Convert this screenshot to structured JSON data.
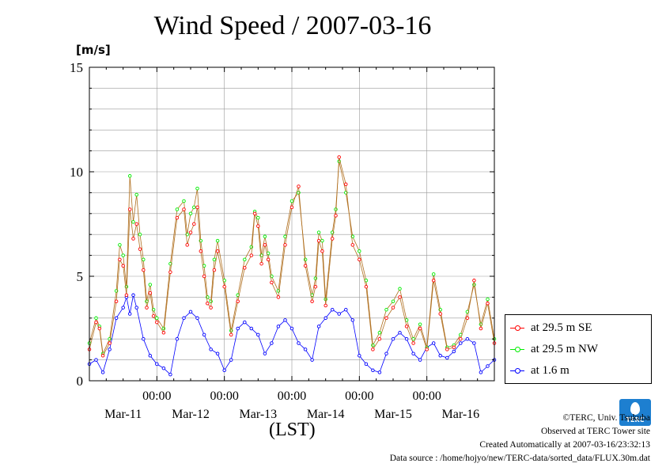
{
  "header": {
    "title": "Wind Speed / 2007-03-16",
    "unit": "[m/s]",
    "xlabel": "(LST)"
  },
  "footer": {
    "copyright": "©TERC, Univ. Tsukuba",
    "site": "Observed at TERC Tower site",
    "created": "Created Automatically at 2007-03-16/23:32:13",
    "source": "Data source : /home/hojyo/new/TERC-data/sorted_data/FLUX.30m.dat",
    "logo_text": "TERC"
  },
  "colors": {
    "se": "#ff0000",
    "nw": "#00ee00",
    "m16": "#0000ff",
    "connector": "#b07020",
    "grid": "#999999"
  },
  "chart_data": {
    "type": "line",
    "title": "Wind Speed / 2007-03-16",
    "ylabel": "[m/s]",
    "xlabel": "(LST)",
    "ylim": [
      0,
      15
    ],
    "xlim": [
      0,
      6
    ],
    "yticks": [
      0,
      5,
      10,
      15
    ],
    "x_time_labels": [
      "00:00",
      "00:00",
      "00:00",
      "00:00",
      "00:00"
    ],
    "x_date_labels": [
      "Mar-11",
      "Mar-12",
      "Mar-13",
      "Mar-14",
      "Mar-15",
      "Mar-16"
    ],
    "x_unit": "days (2007-03-11 to 2007-03-16)",
    "grid": true,
    "legend_position": "right",
    "series": [
      {
        "name": "at 29.5 m SE",
        "color": "#ff0000",
        "x": [
          0,
          0.1,
          0.15,
          0.2,
          0.3,
          0.4,
          0.45,
          0.5,
          0.55,
          0.6,
          0.65,
          0.7,
          0.75,
          0.8,
          0.85,
          0.9,
          0.95,
          1.0,
          1.1,
          1.2,
          1.3,
          1.4,
          1.45,
          1.5,
          1.55,
          1.6,
          1.65,
          1.7,
          1.75,
          1.8,
          1.85,
          1.9,
          2.0,
          2.1,
          2.2,
          2.3,
          2.4,
          2.45,
          2.5,
          2.55,
          2.6,
          2.65,
          2.7,
          2.8,
          2.9,
          3.0,
          3.1,
          3.2,
          3.3,
          3.35,
          3.4,
          3.45,
          3.5,
          3.6,
          3.65,
          3.7,
          3.8,
          3.9,
          4.0,
          4.1,
          4.2,
          4.3,
          4.4,
          4.5,
          4.6,
          4.7,
          4.8,
          4.9,
          5.0,
          5.1,
          5.2,
          5.3,
          5.4,
          5.5,
          5.6,
          5.7,
          5.8,
          5.9,
          6.0
        ],
        "y": [
          1.5,
          2.8,
          2.5,
          1.2,
          1.8,
          3.8,
          5.8,
          5.5,
          4.1,
          8.2,
          6.8,
          7.5,
          6.3,
          5.3,
          3.5,
          4.2,
          3.1,
          2.8,
          2.3,
          5.2,
          7.8,
          8.2,
          6.5,
          7.1,
          7.5,
          8.3,
          6.2,
          5.0,
          3.7,
          3.5,
          5.3,
          6.2,
          4.5,
          2.2,
          3.8,
          5.4,
          6.0,
          8.0,
          7.4,
          5.6,
          6.5,
          5.8,
          4.7,
          4.0,
          6.5,
          8.3,
          9.3,
          5.5,
          3.8,
          4.5,
          6.7,
          6.2,
          3.6,
          6.8,
          7.9,
          10.7,
          9.4,
          6.5,
          5.8,
          4.5,
          1.5,
          2.0,
          3.0,
          3.5,
          4.0,
          2.6,
          1.8,
          2.5,
          1.5,
          4.8,
          3.2,
          1.5,
          1.6,
          2.0,
          3.0,
          4.8,
          2.5,
          3.7,
          1.8
        ]
      },
      {
        "name": "at 29.5 m NW",
        "color": "#00ee00",
        "x": [
          0,
          0.1,
          0.15,
          0.2,
          0.3,
          0.4,
          0.45,
          0.5,
          0.55,
          0.6,
          0.65,
          0.7,
          0.75,
          0.8,
          0.85,
          0.9,
          0.95,
          1.0,
          1.1,
          1.2,
          1.3,
          1.4,
          1.45,
          1.5,
          1.55,
          1.6,
          1.65,
          1.7,
          1.75,
          1.8,
          1.85,
          1.9,
          2.0,
          2.1,
          2.2,
          2.3,
          2.4,
          2.45,
          2.5,
          2.55,
          2.6,
          2.65,
          2.7,
          2.8,
          2.9,
          3.0,
          3.1,
          3.2,
          3.3,
          3.35,
          3.4,
          3.45,
          3.5,
          3.6,
          3.65,
          3.7,
          3.8,
          3.9,
          4.0,
          4.1,
          4.2,
          4.3,
          4.4,
          4.5,
          4.6,
          4.7,
          4.8,
          4.9,
          5.0,
          5.1,
          5.2,
          5.3,
          5.4,
          5.5,
          5.6,
          5.7,
          5.8,
          5.9,
          6.0
        ],
        "y": [
          1.8,
          3.0,
          2.6,
          1.3,
          2.0,
          4.3,
          6.5,
          6.0,
          4.5,
          9.8,
          7.6,
          8.9,
          7.0,
          5.8,
          3.8,
          4.6,
          3.4,
          3.0,
          2.5,
          5.6,
          8.2,
          8.6,
          7.0,
          8.0,
          8.3,
          9.2,
          6.7,
          5.5,
          4.0,
          3.8,
          5.8,
          6.7,
          4.8,
          2.4,
          4.1,
          5.8,
          6.4,
          8.1,
          7.8,
          6.0,
          6.9,
          6.1,
          5.0,
          4.3,
          6.9,
          8.6,
          9.0,
          5.8,
          4.1,
          4.9,
          7.1,
          6.7,
          3.9,
          7.1,
          8.2,
          10.5,
          9.0,
          6.9,
          6.2,
          4.8,
          1.7,
          2.3,
          3.4,
          3.8,
          4.4,
          2.9,
          2.0,
          2.7,
          1.6,
          5.1,
          3.4,
          1.6,
          1.7,
          2.2,
          3.3,
          4.6,
          2.7,
          3.9,
          2.0
        ]
      },
      {
        "name": "at 1.6 m",
        "color": "#0000ff",
        "x": [
          0,
          0.1,
          0.2,
          0.3,
          0.4,
          0.5,
          0.55,
          0.6,
          0.65,
          0.7,
          0.8,
          0.9,
          1.0,
          1.1,
          1.2,
          1.3,
          1.4,
          1.5,
          1.6,
          1.7,
          1.8,
          1.9,
          2.0,
          2.1,
          2.2,
          2.3,
          2.4,
          2.5,
          2.6,
          2.7,
          2.8,
          2.9,
          3.0,
          3.1,
          3.2,
          3.3,
          3.4,
          3.5,
          3.6,
          3.7,
          3.8,
          3.9,
          4.0,
          4.1,
          4.2,
          4.3,
          4.4,
          4.5,
          4.6,
          4.7,
          4.8,
          4.9,
          5.0,
          5.1,
          5.2,
          5.3,
          5.4,
          5.5,
          5.6,
          5.7,
          5.8,
          5.9,
          6.0
        ],
        "y": [
          0.8,
          1.0,
          0.4,
          1.5,
          3.0,
          3.5,
          4.0,
          3.2,
          4.1,
          3.5,
          2.0,
          1.2,
          0.8,
          0.6,
          0.3,
          2.0,
          3.0,
          3.3,
          3.0,
          2.2,
          1.5,
          1.3,
          0.5,
          1.0,
          2.5,
          2.8,
          2.5,
          2.2,
          1.3,
          1.8,
          2.6,
          2.9,
          2.5,
          1.8,
          1.5,
          1.0,
          2.6,
          3.0,
          3.4,
          3.2,
          3.4,
          2.9,
          1.2,
          0.8,
          0.5,
          0.4,
          1.3,
          2.0,
          2.3,
          2.0,
          1.3,
          1.0,
          1.6,
          1.8,
          1.2,
          1.1,
          1.4,
          1.8,
          2.0,
          1.8,
          0.4,
          0.7,
          1.0
        ]
      }
    ]
  }
}
